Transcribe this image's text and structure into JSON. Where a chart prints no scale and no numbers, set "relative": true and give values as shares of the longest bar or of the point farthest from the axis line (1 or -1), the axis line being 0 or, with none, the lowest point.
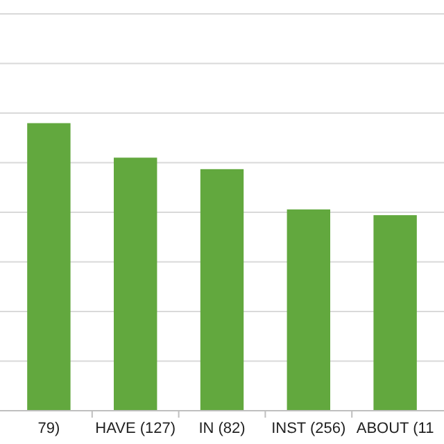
{
  "chart_data": {
    "type": "bar",
    "categories": [
      "79)",
      "HAVE (127)",
      "IN (82)",
      "INST (256)",
      "ABOUT (11"
    ],
    "values": [
      1,
      0.88,
      0.84,
      0.7,
      0.68
    ],
    "color": "#62a83e",
    "relative": true,
    "grid": true
  }
}
